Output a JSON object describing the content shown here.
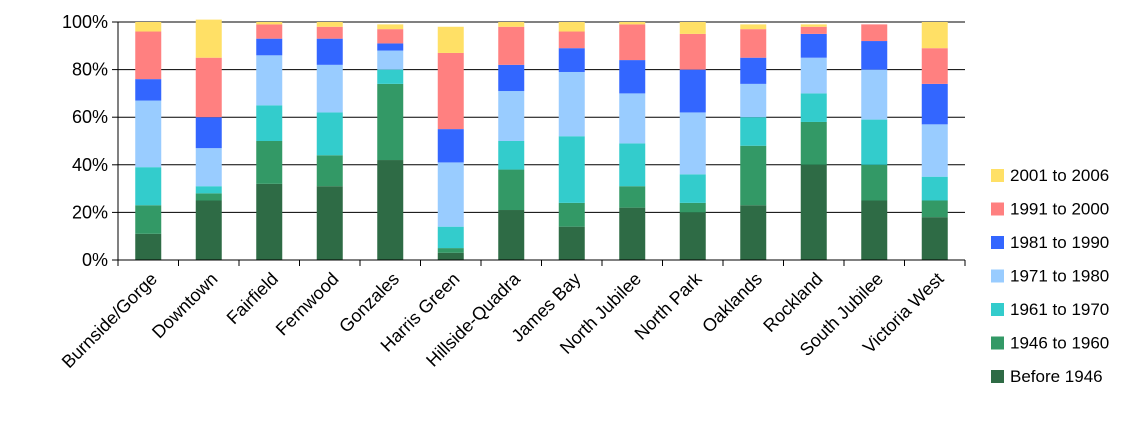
{
  "chart_data": {
    "type": "bar",
    "stacked": true,
    "percent": true,
    "title": "",
    "xlabel": "",
    "ylabel": "",
    "ylim": [
      0,
      100
    ],
    "y_ticks": [
      "0%",
      "20%",
      "40%",
      "60%",
      "80%",
      "100%"
    ],
    "grid": "horizontal",
    "legend_position": "right",
    "categories": [
      "Burnside/Gorge",
      "Downtown",
      "Fairfield",
      "Fernwood",
      "Gonzales",
      "Harris Green",
      "Hillside-Quadra",
      "James Bay",
      "North Jubilee",
      "North Park",
      "Oaklands",
      "Rockland",
      "South Jubilee",
      "Victoria West"
    ],
    "series": [
      {
        "name": "Before 1946",
        "color": "#2e6b45",
        "values": [
          11,
          25,
          32,
          31,
          42,
          3,
          21,
          14,
          22,
          20,
          23,
          40,
          25,
          18
        ]
      },
      {
        "name": "1946 to 1960",
        "color": "#339966",
        "values": [
          12,
          3,
          18,
          13,
          32,
          2,
          17,
          10,
          9,
          4,
          25,
          18,
          15,
          7
        ]
      },
      {
        "name": "1961 to 1970",
        "color": "#33cccc",
        "values": [
          16,
          3,
          15,
          18,
          6,
          9,
          12,
          28,
          18,
          12,
          12,
          12,
          19,
          10
        ]
      },
      {
        "name": "1971 to 1980",
        "color": "#99ccff",
        "values": [
          28,
          16,
          21,
          20,
          8,
          27,
          21,
          27,
          21,
          26,
          14,
          15,
          21,
          22
        ]
      },
      {
        "name": "1981 to 1990",
        "color": "#3366ff",
        "values": [
          9,
          13,
          7,
          11,
          3,
          14,
          11,
          10,
          14,
          18,
          11,
          10,
          12,
          17
        ]
      },
      {
        "name": "1991 to 2000",
        "color": "#ff8080",
        "values": [
          20,
          25,
          6,
          5,
          6,
          32,
          16,
          7,
          15,
          15,
          12,
          3,
          7,
          15
        ]
      },
      {
        "name": "2001 to 2006",
        "color": "#ffe066",
        "values": [
          4,
          16,
          1,
          2,
          2,
          11,
          2,
          4,
          1,
          5,
          2,
          1,
          0,
          11
        ]
      }
    ]
  }
}
